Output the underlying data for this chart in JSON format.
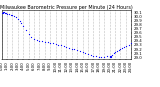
{
  "title": "Milwaukee Barometric Pressure per Minute (24 Hours)",
  "title_fontsize": 3.5,
  "background_color": "#ffffff",
  "dot_color": "#0000ff",
  "dot_size": 0.8,
  "grid_color": "#888888",
  "grid_linestyle": ":",
  "ylim": [
    28.95,
    30.15
  ],
  "xlim": [
    0,
    1440
  ],
  "ytick_labels": [
    "30.1",
    "30.0",
    "29.9",
    "29.8",
    "29.7",
    "29.6",
    "29.5",
    "29.4",
    "29.3",
    "29.2",
    "29.1",
    "29.0"
  ],
  "ytick_values": [
    30.1,
    30.0,
    29.9,
    29.8,
    29.7,
    29.6,
    29.5,
    29.4,
    29.3,
    29.2,
    29.1,
    29.0
  ],
  "tick_fontsize": 2.8,
  "data_x": [
    0,
    10,
    20,
    30,
    40,
    50,
    60,
    80,
    100,
    120,
    140,
    160,
    180,
    200,
    220,
    240,
    270,
    300,
    330,
    360,
    390,
    420,
    450,
    480,
    510,
    540,
    570,
    600,
    630,
    660,
    690,
    720,
    750,
    780,
    810,
    840,
    870,
    900,
    930,
    960,
    990,
    1020,
    1050,
    1080,
    1110,
    1140,
    1170,
    1200,
    1210,
    1215,
    1220,
    1230,
    1250,
    1260,
    1280,
    1300,
    1320,
    1340,
    1360,
    1380,
    1410,
    1440
  ],
  "data_y": [
    30.08,
    30.09,
    30.1,
    30.1,
    30.09,
    30.08,
    30.07,
    30.06,
    30.05,
    30.03,
    30.01,
    29.98,
    29.95,
    29.9,
    29.84,
    29.77,
    29.68,
    29.58,
    29.5,
    29.44,
    29.42,
    29.4,
    29.39,
    29.38,
    29.37,
    29.36,
    29.35,
    29.33,
    29.31,
    29.29,
    29.27,
    29.25,
    29.23,
    29.21,
    29.19,
    29.17,
    29.14,
    29.12,
    29.1,
    29.08,
    29.06,
    29.04,
    29.02,
    29.0,
    29.0,
    29.01,
    29.02,
    29.02,
    29.01,
    29.0,
    29.02,
    29.05,
    29.1,
    29.13,
    29.16,
    29.18,
    29.2,
    29.22,
    29.25,
    29.28,
    29.3,
    29.35
  ]
}
